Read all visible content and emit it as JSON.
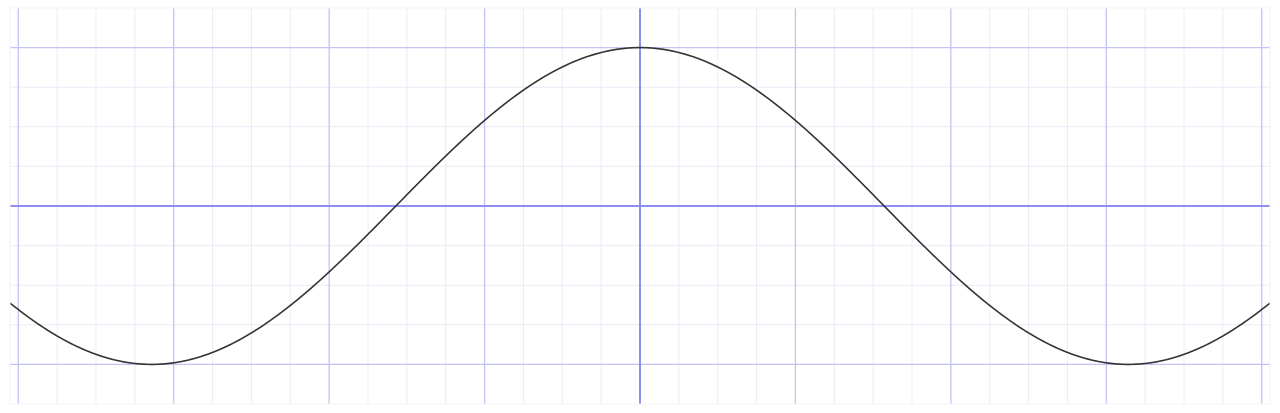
{
  "chart_data": {
    "type": "line",
    "title": "",
    "xlabel": "",
    "ylabel": "",
    "xlim": [
      -4.0531,
      4.0531
    ],
    "ylim": [
      -1.25,
      1.25
    ],
    "grid": true,
    "major_grid_step_x": 1,
    "minor_grid_step_x": 0.25,
    "major_grid_step_y": 1,
    "minor_grid_step_y": 0.25,
    "series": [
      {
        "function": "cos(x)",
        "x": [
          -4.0531,
          -3.5,
          -3.1416,
          -2.5,
          -2.0,
          -1.5708,
          -1.0,
          -0.5,
          0.0,
          0.5,
          1.0,
          1.5708,
          2.0,
          2.5,
          3.1416,
          3.5,
          4.0531
        ],
        "y": [
          -0.6119,
          -0.9365,
          -1.0,
          -0.8011,
          -0.4161,
          0.0,
          0.5403,
          0.8776,
          1.0,
          0.8776,
          0.5403,
          0.0,
          -0.4161,
          -0.8011,
          -1.0,
          -0.9365,
          -0.6119
        ]
      }
    ],
    "colors": {
      "curve": "#333333",
      "major_grid": "#c4c4f4",
      "minor_grid": "#ebebf8",
      "axis": "#8c8ff0",
      "background": "#ffffff",
      "frame": "#f3f3f3"
    }
  }
}
